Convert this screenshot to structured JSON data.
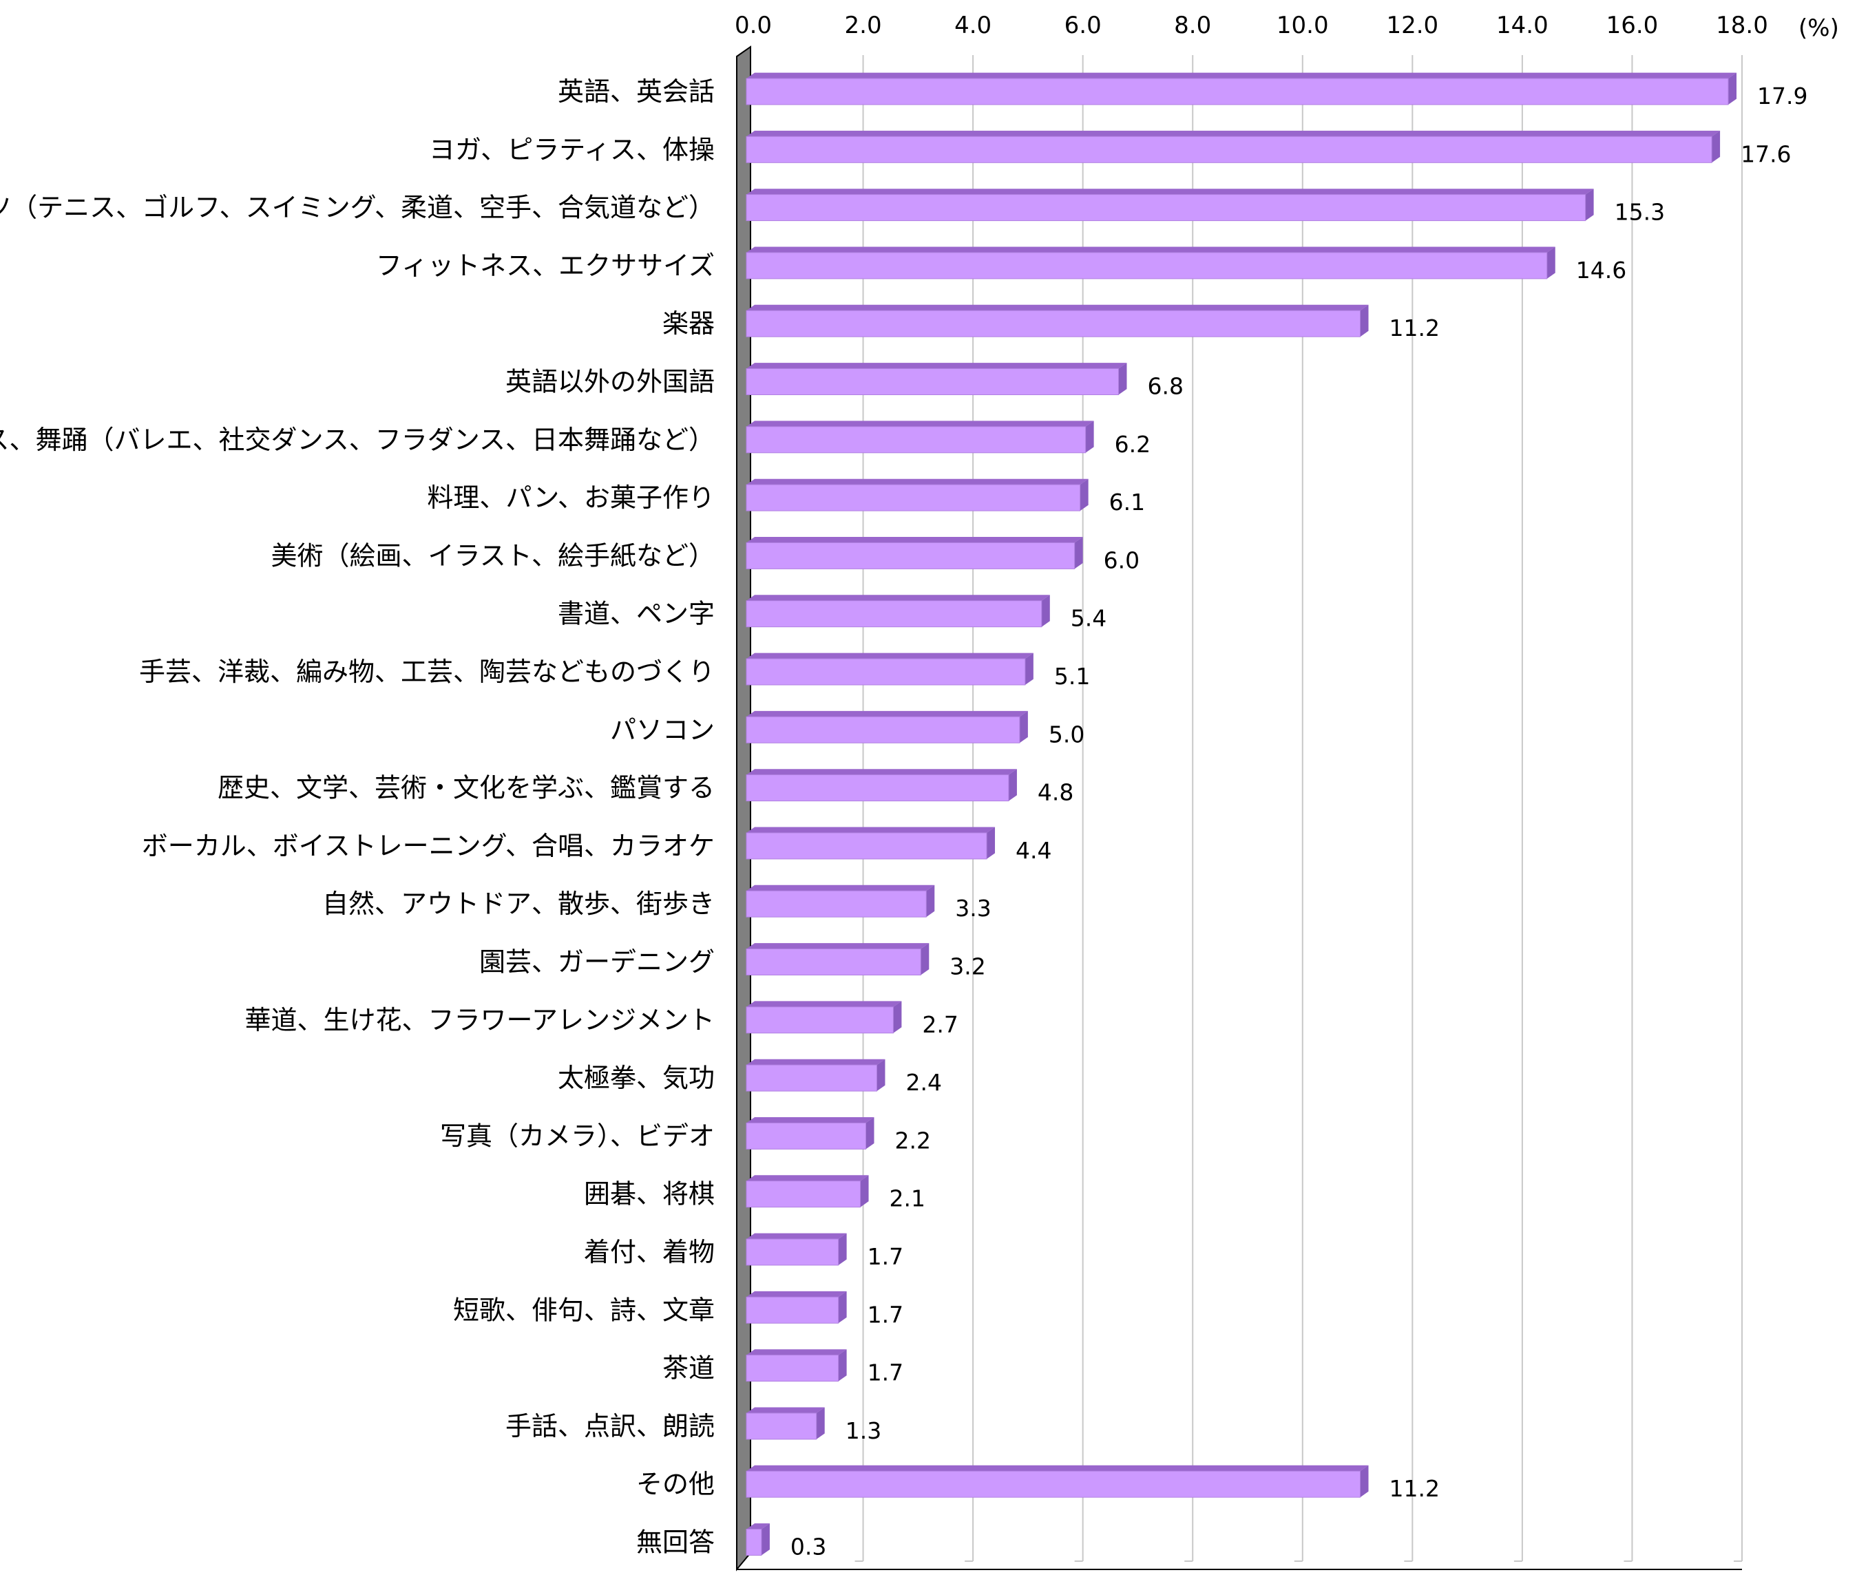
{
  "chart_data": {
    "type": "bar",
    "orientation": "horizontal",
    "unit": "(%)",
    "xlim": [
      0,
      18
    ],
    "ticks": [
      "0.0",
      "2.0",
      "4.0",
      "6.0",
      "8.0",
      "10.0",
      "12.0",
      "14.0",
      "16.0",
      "18.0"
    ],
    "categories": [
      "英語、英会話",
      "ヨガ、ピラティス、体操",
      "スポーツ（テニス、ゴルフ、スイミング、柔道、空手、合気道など）",
      "フィットネス、エクササイズ",
      "楽器",
      "英語以外の外国語",
      "ダンス、舞踊（バレエ、社交ダンス、フラダンス、日本舞踊など）",
      "料理、パン、お菓子作り",
      "美術（絵画、イラスト、絵手紙など）",
      "書道、ペン字",
      "手芸、洋裁、編み物、工芸、陶芸などものづくり",
      "パソコン",
      "歴史、文学、芸術・文化を学ぶ、鑑賞する",
      "ボーカル、ボイストレーニング、合唱、カラオケ",
      "自然、アウトドア、散歩、街歩き",
      "園芸、ガーデニング",
      "華道、生け花、フラワーアレンジメント",
      "太極拳、気功",
      "写真（カメラ）、ビデオ",
      "囲碁、将棋",
      "着付、着物",
      "短歌、俳句、詩、文章",
      "茶道",
      "手話、点訳、朗読",
      "その他",
      "無回答"
    ],
    "values": [
      17.9,
      17.6,
      15.3,
      14.6,
      11.2,
      6.8,
      6.2,
      6.1,
      6.0,
      5.4,
      5.1,
      5.0,
      4.8,
      4.4,
      3.3,
      3.2,
      2.7,
      2.4,
      2.2,
      2.1,
      1.7,
      1.7,
      1.7,
      1.3,
      11.2,
      0.3
    ],
    "value_labels": [
      "17.9",
      "17.6",
      "15.3",
      "14.6",
      "11.2",
      "6.8",
      "6.2",
      "6.1",
      "6.0",
      "5.4",
      "5.1",
      "5.0",
      "4.8",
      "4.4",
      "3.3",
      "3.2",
      "2.7",
      "2.4",
      "2.2",
      "2.1",
      "1.7",
      "1.7",
      "1.7",
      "1.3",
      "11.2",
      "0.3"
    ],
    "bar_color": "#cc99ff",
    "bar_top_color": "#9966cc",
    "bar_side_color": "#8a5cc0",
    "wall_color": "#808080",
    "grid": true,
    "legend": "none",
    "title": "",
    "xlabel": "",
    "ylabel": ""
  }
}
